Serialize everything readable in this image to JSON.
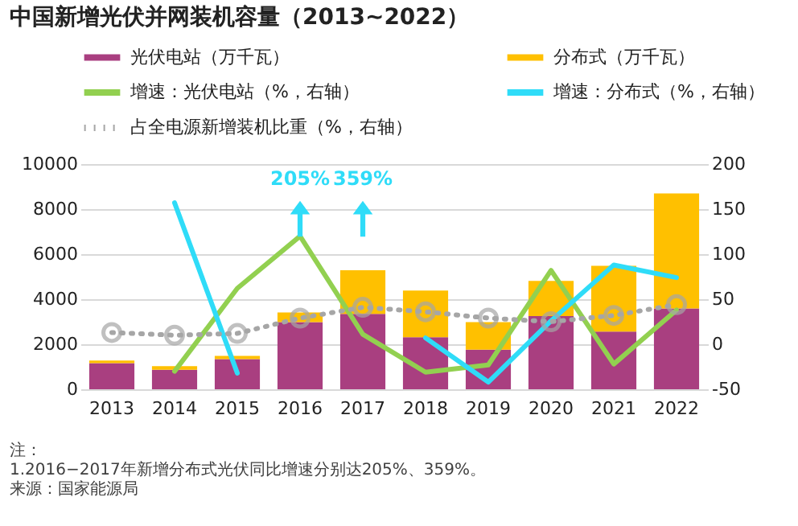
{
  "chart_data": {
    "type": "bar",
    "title": "中国新增光伏并网装机容量（2013~2022）",
    "categories": [
      "2013",
      "2014",
      "2015",
      "2016",
      "2017",
      "2018",
      "2019",
      "2020",
      "2021",
      "2022"
    ],
    "stacked": true,
    "series": [
      {
        "name": "光伏电站（万千瓦）",
        "color": "#a93f80",
        "values": [
          1160,
          870,
          1340,
          2980,
          3350,
          2310,
          1760,
          3250,
          2560,
          3590
        ]
      },
      {
        "name": "分布式（万千瓦）",
        "color": "#ffc000",
        "values": [
          120,
          160,
          140,
          430,
          1940,
          2070,
          1220,
          1560,
          2920,
          5110
        ]
      },
      {
        "name": "增速：光伏电站（%，右轴）",
        "type": "line",
        "axis": "y2",
        "color": "#92d050",
        "values": [
          null,
          -30,
          62,
          120,
          11,
          -31,
          -23,
          82,
          -22,
          38
        ]
      },
      {
        "name": "增速：分布式（%，右轴）",
        "type": "line",
        "axis": "y2",
        "color": "#2fdcf8",
        "values": [
          null,
          157,
          -32,
          null,
          null,
          7,
          -42,
          26,
          88,
          74
        ]
      },
      {
        "name": "占全电源新增装机比重（%，右轴）",
        "type": "line",
        "axis": "y2",
        "color": "#a6a6a6",
        "marker": "circle",
        "line_style": "dotted",
        "values": [
          13,
          10,
          12,
          29,
          41,
          36,
          29,
          25,
          32,
          44
        ]
      }
    ],
    "ylim": [
      0,
      10000
    ],
    "yticks": [
      0,
      2000,
      4000,
      6000,
      8000,
      10000
    ],
    "y2lim": [
      -50,
      200
    ],
    "y2ticks": [
      -50,
      0,
      50,
      100,
      150,
      200
    ],
    "grid": "y",
    "legend": "top",
    "annotations": [
      "205%",
      "359%",
      "注：",
      "1.2016−2017年新增分布式光伏同比增速分别达205%、359%。",
      "来源：国家能源局"
    ]
  }
}
